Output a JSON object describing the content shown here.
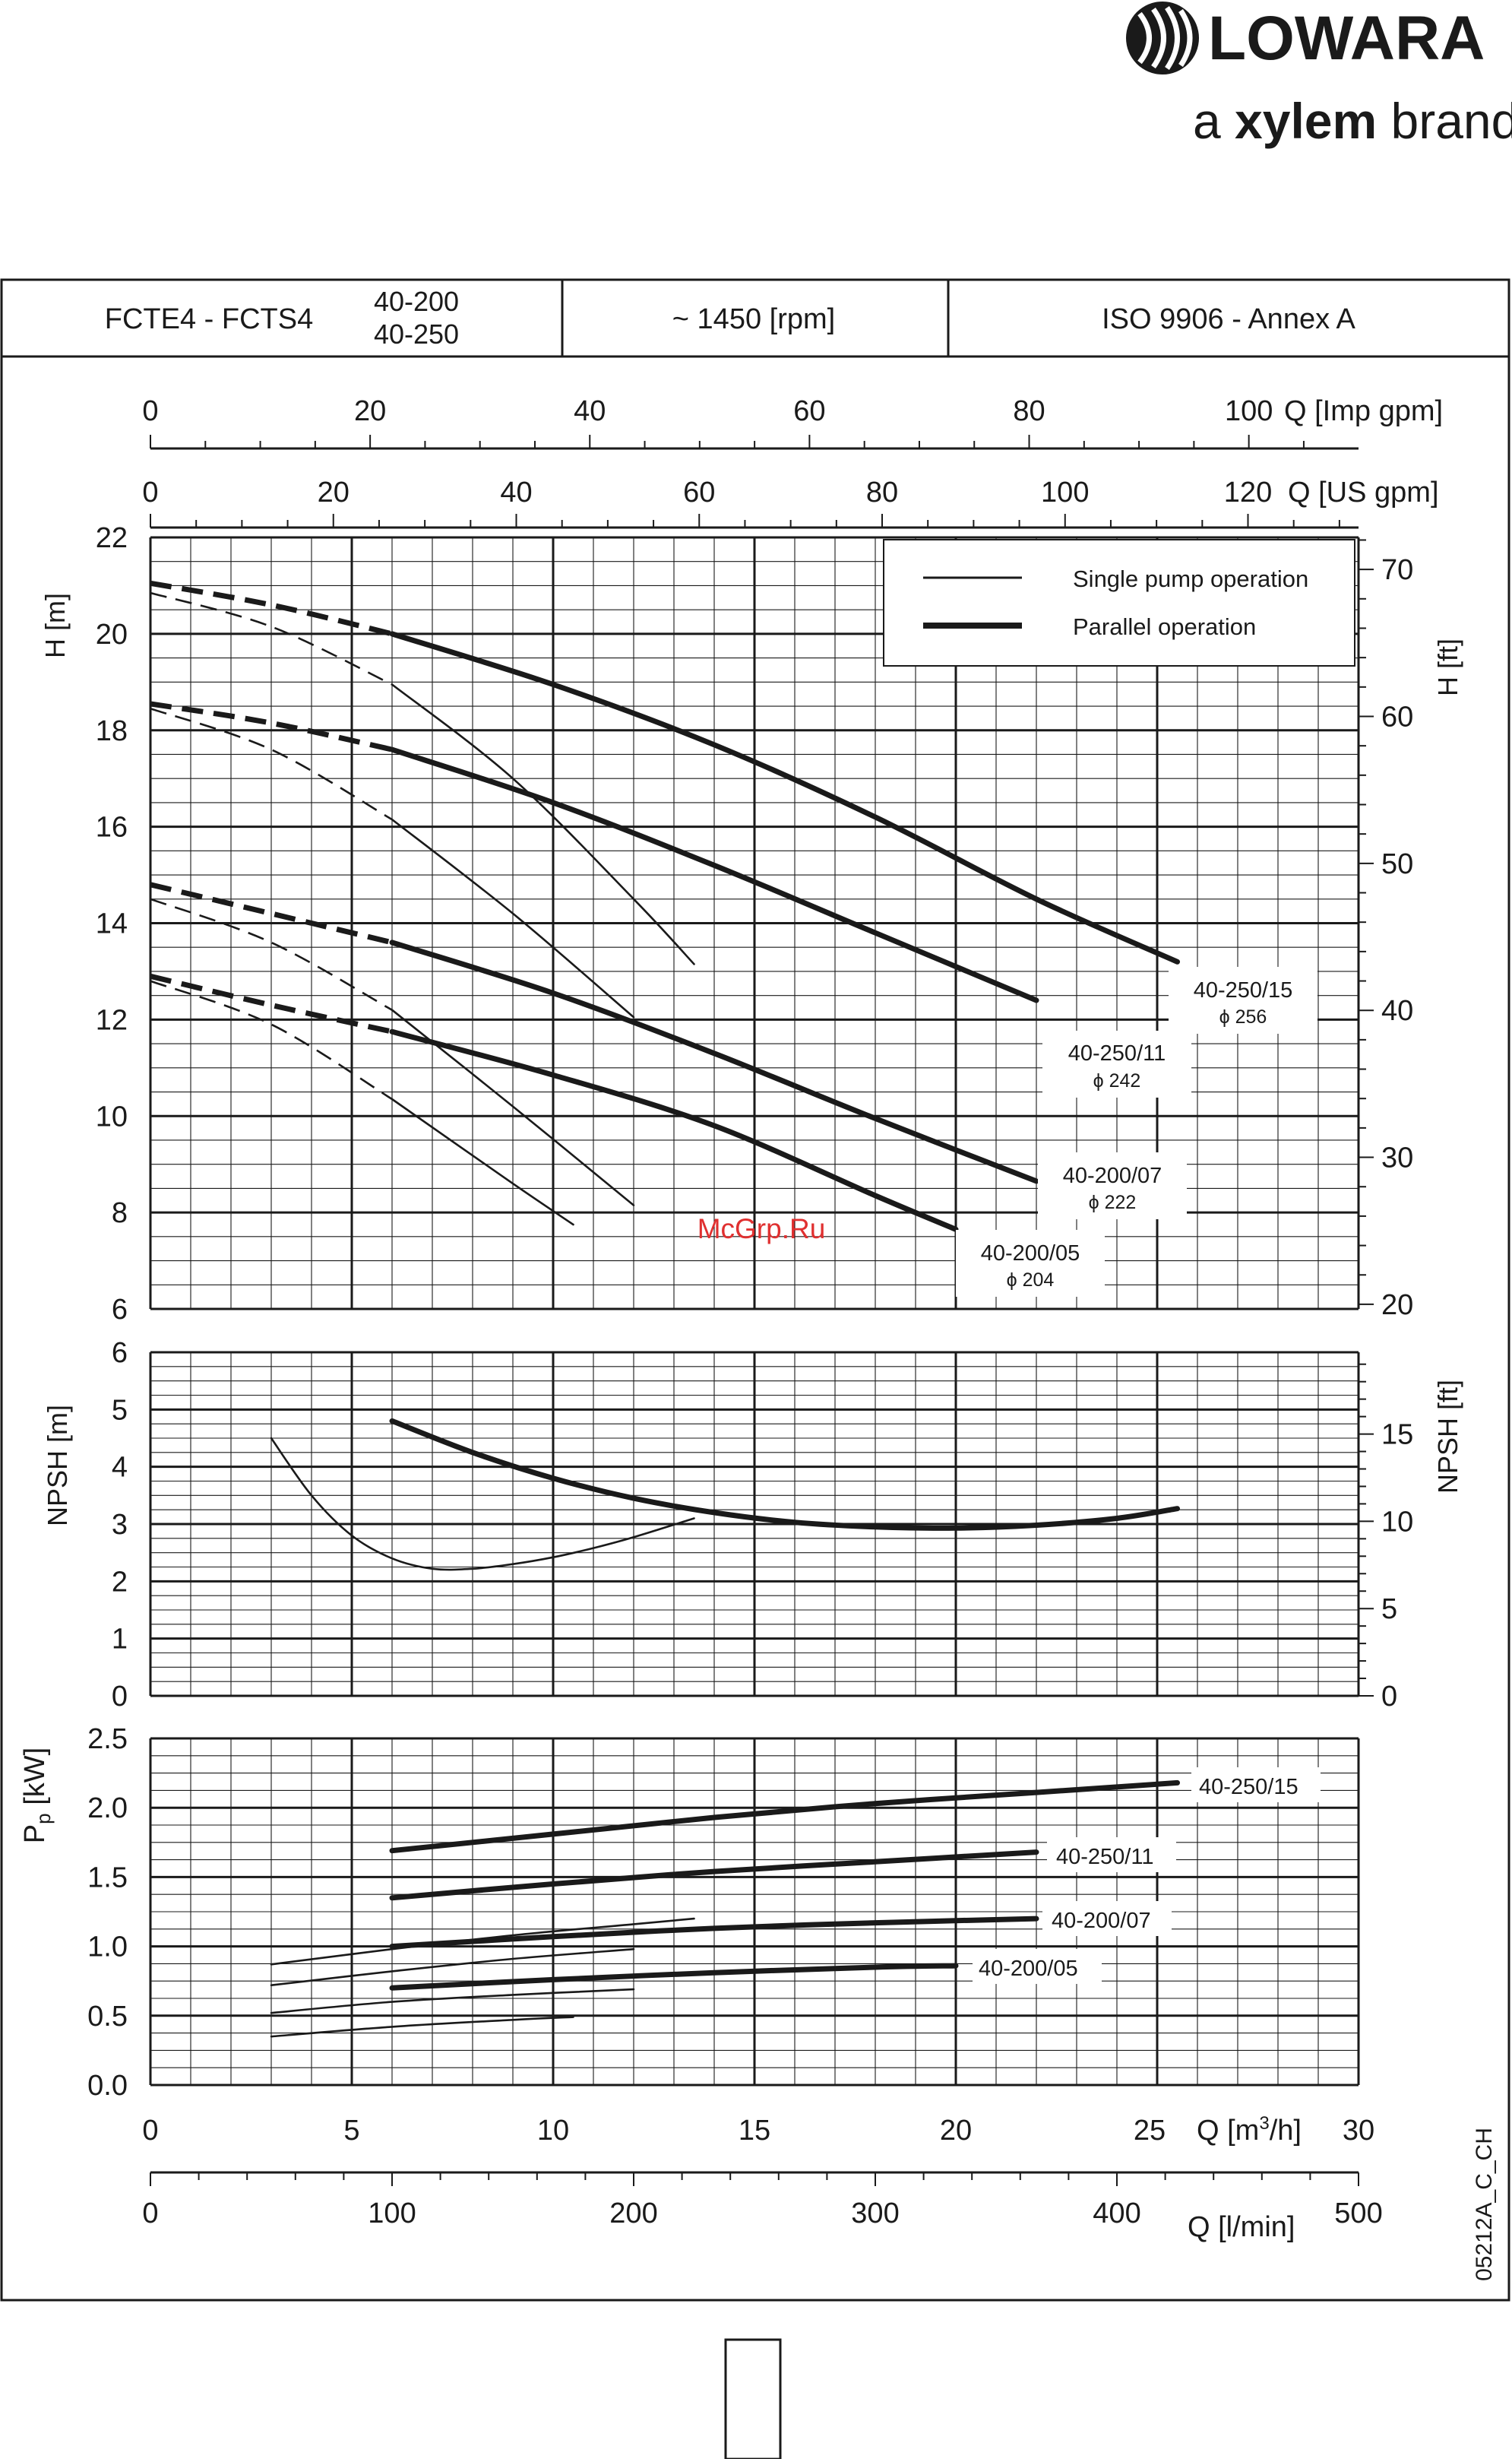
{
  "brand": {
    "name": "LOWARA",
    "tagline_prefix": "a ",
    "tagline_brand": "xylem",
    "tagline_suffix": " brand"
  },
  "header": {
    "model": "FCTE4 - FCTS4",
    "sizes": [
      "40-200",
      "40-250"
    ],
    "speed": "~ 1450 [rpm]",
    "standard": "ISO 9906 - Annex A"
  },
  "watermark": "McGrp.Ru",
  "drawing_code": "05212A_C_CH",
  "legend": {
    "single": "Single pump operation",
    "parallel": "Parallel operation"
  },
  "colors": {
    "line": "#1a1a1a",
    "grid": "#1a1a1a",
    "watermark": "#e03030"
  },
  "chart_data": [
    {
      "type": "line",
      "title": "",
      "xlabel": "Q [m³/h]",
      "ylabel": "H [m]",
      "ylabel_right": "H [ft]",
      "xlim": [
        0,
        30
      ],
      "ylim": [
        6,
        22
      ],
      "y_ticks": [
        6,
        8,
        10,
        12,
        14,
        16,
        18,
        20,
        22
      ],
      "y_ticks_right": [
        20,
        30,
        40,
        50,
        60,
        70
      ],
      "top_axes": [
        {
          "label": "Q [Imp gpm]",
          "ticks": [
            0,
            20,
            40,
            60,
            80,
            100
          ]
        },
        {
          "label": "Q [US gpm]",
          "ticks": [
            0,
            20,
            40,
            60,
            80,
            100,
            120
          ]
        }
      ],
      "grid": true,
      "legend_position": "top-right",
      "series": [
        {
          "name": "40-250/15",
          "diameter": "ϕ 256",
          "style": "single",
          "x": [
            0,
            3,
            6,
            9,
            12,
            13.5
          ],
          "y": [
            20.85,
            20.15,
            18.95,
            17.0,
            14.5,
            13.15
          ]
        },
        {
          "name": "40-250/15",
          "diameter": "ϕ 256",
          "style": "parallel",
          "x": [
            0,
            3,
            6,
            10,
            14,
            18,
            22,
            25.5
          ],
          "y": [
            21.05,
            20.6,
            20.0,
            18.95,
            17.7,
            16.2,
            14.5,
            13.2
          ]
        },
        {
          "name": "40-250/11",
          "diameter": "ϕ 242",
          "style": "single",
          "x": [
            0,
            3,
            6,
            9,
            12
          ],
          "y": [
            18.45,
            17.6,
            16.15,
            14.2,
            12.05
          ]
        },
        {
          "name": "40-250/11",
          "diameter": "ϕ 242",
          "style": "parallel",
          "x": [
            0,
            3,
            6,
            10,
            14,
            18,
            22
          ],
          "y": [
            18.55,
            18.15,
            17.6,
            16.5,
            15.2,
            13.8,
            12.4
          ]
        },
        {
          "name": "40-200/07",
          "diameter": "ϕ 222",
          "style": "single",
          "x": [
            0,
            3,
            6,
            9,
            12
          ],
          "y": [
            14.5,
            13.6,
            12.2,
            10.2,
            8.15
          ]
        },
        {
          "name": "40-200/07",
          "diameter": "ϕ 222",
          "style": "parallel",
          "x": [
            0,
            3,
            6,
            10,
            14,
            18,
            22
          ],
          "y": [
            14.8,
            14.2,
            13.6,
            12.55,
            11.3,
            9.95,
            8.65
          ]
        },
        {
          "name": "40-200/05",
          "diameter": "ϕ 204",
          "style": "single",
          "x": [
            0,
            3,
            6,
            9,
            10.5
          ],
          "y": [
            12.8,
            11.9,
            10.35,
            8.6,
            7.75
          ]
        },
        {
          "name": "40-200/05",
          "diameter": "ϕ 204",
          "style": "parallel",
          "x": [
            0,
            3,
            6,
            10,
            14,
            18,
            20
          ],
          "y": [
            12.9,
            12.3,
            11.75,
            10.85,
            9.8,
            8.35,
            7.65
          ]
        }
      ]
    },
    {
      "type": "line",
      "title": "",
      "xlabel": "Q [m³/h]",
      "ylabel": "NPSH [m]",
      "ylabel_right": "NPSH [ft]",
      "xlim": [
        0,
        30
      ],
      "ylim": [
        0,
        6
      ],
      "y_ticks": [
        0,
        1,
        2,
        3,
        4,
        5,
        6
      ],
      "y_ticks_right": [
        0,
        5,
        10,
        15
      ],
      "grid": true,
      "series": [
        {
          "style": "single",
          "x": [
            3,
            4,
            5,
            6,
            7,
            8,
            9,
            10,
            11,
            12,
            13.5
          ],
          "y": [
            4.5,
            3.5,
            2.8,
            2.4,
            2.22,
            2.22,
            2.3,
            2.42,
            2.58,
            2.77,
            3.1
          ]
        },
        {
          "style": "parallel",
          "x": [
            6,
            8,
            10,
            12,
            14,
            16,
            18,
            20,
            22,
            24,
            25.5
          ],
          "y": [
            4.8,
            4.25,
            3.8,
            3.45,
            3.2,
            3.03,
            2.95,
            2.93,
            2.98,
            3.1,
            3.27
          ]
        }
      ]
    },
    {
      "type": "line",
      "title": "",
      "xlabel": "Q [m³/h]",
      "ylabel": "Pp [kW]",
      "xlim": [
        0,
        30
      ],
      "ylim": [
        0,
        2.5
      ],
      "y_ticks": [
        "0.0",
        "0.5",
        "1.0",
        "1.5",
        "2.0",
        "2.5"
      ],
      "x_ticks": [
        0,
        5,
        10,
        15,
        20,
        25,
        30
      ],
      "bottom_axis": {
        "label": "Q [l/min]",
        "ticks": [
          0,
          100,
          200,
          300,
          400,
          500
        ]
      },
      "grid": true,
      "series": [
        {
          "name": "40-250/15",
          "style": "single",
          "x": [
            3,
            6,
            9,
            12,
            13.5
          ],
          "y": [
            0.87,
            0.98,
            1.08,
            1.16,
            1.2
          ]
        },
        {
          "name": "40-250/15",
          "style": "parallel",
          "x": [
            6,
            10,
            14,
            18,
            22,
            25.5
          ],
          "y": [
            1.69,
            1.81,
            1.93,
            2.03,
            2.11,
            2.18
          ]
        },
        {
          "name": "40-250/11",
          "style": "single",
          "x": [
            3,
            6,
            9,
            12
          ],
          "y": [
            0.72,
            0.82,
            0.91,
            0.98
          ]
        },
        {
          "name": "40-250/11",
          "style": "parallel",
          "x": [
            6,
            10,
            14,
            18,
            22
          ],
          "y": [
            1.35,
            1.45,
            1.54,
            1.61,
            1.68
          ]
        },
        {
          "name": "40-200/07",
          "style": "single",
          "x": [
            3,
            6,
            9,
            12
          ],
          "y": [
            0.52,
            0.6,
            0.65,
            0.69
          ]
        },
        {
          "name": "40-200/07",
          "style": "parallel",
          "x": [
            6,
            10,
            14,
            18,
            22
          ],
          "y": [
            1.0,
            1.07,
            1.13,
            1.17,
            1.2
          ]
        },
        {
          "name": "40-200/05",
          "style": "single",
          "x": [
            3,
            6,
            9,
            10.5
          ],
          "y": [
            0.35,
            0.42,
            0.47,
            0.49
          ]
        },
        {
          "name": "40-200/05",
          "style": "parallel",
          "x": [
            6,
            10,
            14,
            18,
            20
          ],
          "y": [
            0.7,
            0.76,
            0.81,
            0.85,
            0.86
          ]
        }
      ]
    }
  ]
}
